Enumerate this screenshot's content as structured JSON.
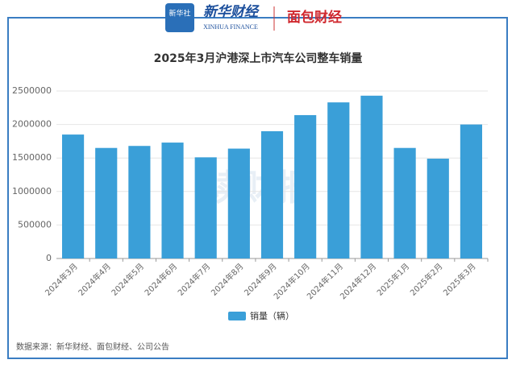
{
  "header": {
    "badge": "新华社",
    "brand": "新华财经",
    "brand_en": "XINHUA FINANCE",
    "partner": "面包财经"
  },
  "watermark": "读财报",
  "source": "数据来源：新华财经、面包财经、公司公告",
  "chart_data": {
    "type": "bar",
    "title": "2025年3月沪港深上市汽车公司整车销量",
    "categories": [
      "2024年3月",
      "2024年4月",
      "2024年5月",
      "2024年6月",
      "2024年7月",
      "2024年8月",
      "2024年9月",
      "2024年10月",
      "2024年11月",
      "2024年12月",
      "2025年1月",
      "2025年2月",
      "2025年3月"
    ],
    "series": [
      {
        "name": "销量（辆）",
        "color": "#3a9fd8",
        "values": [
          1850000,
          1650000,
          1680000,
          1730000,
          1510000,
          1640000,
          1900000,
          2140000,
          2330000,
          2430000,
          1650000,
          1490000,
          2000000
        ]
      }
    ],
    "ylim": [
      0,
      2500000
    ],
    "yticks": [
      0,
      500000,
      1000000,
      1500000,
      2000000,
      2500000
    ],
    "grid": true,
    "legend": "bottom"
  }
}
